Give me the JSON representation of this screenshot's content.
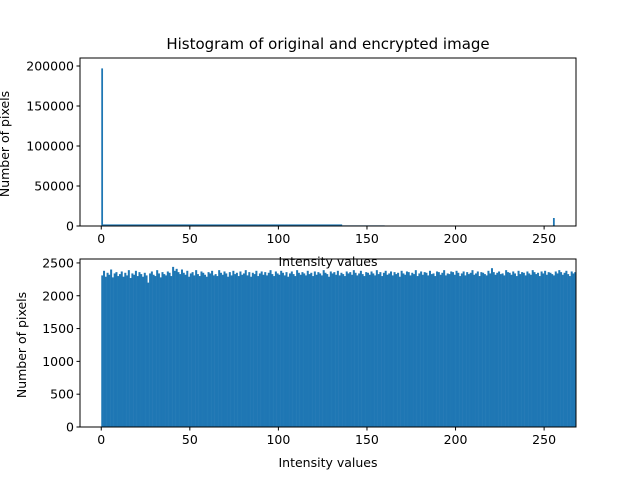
{
  "bar_color": "#1f77b4",
  "chart_data": [
    {
      "type": "bar",
      "title": "Histogram of original and encrypted image",
      "xlabel": "Intensity values",
      "ylabel": "Number of pixels",
      "xlim": [
        -12,
        268
      ],
      "ylim": [
        0,
        210000
      ],
      "xticks": [
        0,
        50,
        100,
        150,
        200,
        250
      ],
      "yticks": [
        0,
        50000,
        100000,
        150000,
        200000
      ],
      "bins": 256,
      "bin_range": [
        0,
        256
      ],
      "grid": false,
      "legend": "none",
      "series": [
        {
          "segments": [
            {
              "from": 0,
              "to": 1,
              "value": 197000
            },
            {
              "from": 1,
              "to": 136,
              "value": 2000
            },
            {
              "from": 136,
              "to": 160,
              "value": 800
            },
            {
              "from": 160,
              "to": 240,
              "value": 300
            },
            {
              "from": 240,
              "to": 255,
              "value": 600
            },
            {
              "from": 255,
              "to": 256,
              "value": 10000
            }
          ]
        }
      ]
    },
    {
      "type": "bar",
      "title": "",
      "xlabel": "Intensity values",
      "ylabel": "Number of pixels",
      "xlim": [
        -12,
        268
      ],
      "ylim": [
        0,
        2560
      ],
      "xticks": [
        0,
        50,
        100,
        150,
        200,
        250
      ],
      "yticks": [
        0,
        500,
        1000,
        1500,
        2000,
        2500
      ],
      "bins": 256,
      "bin_range": [
        0,
        256
      ],
      "grid": false,
      "legend": "none",
      "series": [
        {
          "typical_value": 2340,
          "min_value": 2200,
          "max_value": 2440,
          "values": [
            2310,
            2380,
            2290,
            2350,
            2320,
            2400,
            2280,
            2340,
            2360,
            2300,
            2330,
            2370,
            2290,
            2350,
            2310,
            2390,
            2270,
            2340,
            2320,
            2380,
            2300,
            2360,
            2330,
            2290,
            2350,
            2310,
            2200,
            2340,
            2370,
            2320,
            2300,
            2390,
            2340,
            2280,
            2360,
            2330,
            2310,
            2370,
            2350,
            2300,
            2440,
            2380,
            2410,
            2360,
            2330,
            2400,
            2350,
            2320,
            2380,
            2290,
            2340,
            2360,
            2310,
            2390,
            2330,
            2300,
            2370,
            2350,
            2320,
            2290,
            2360,
            2340,
            2380,
            2310,
            2330,
            2300,
            2390,
            2350,
            2320,
            2370,
            2340,
            2290,
            2360,
            2310,
            2380,
            2330,
            2350,
            2300,
            2370,
            2320,
            2340,
            2390,
            2310,
            2360,
            2290,
            2350,
            2330,
            2380,
            2300,
            2340,
            2370,
            2320,
            2360,
            2310,
            2350,
            2390,
            2330,
            2300,
            2370,
            2340,
            2320,
            2380,
            2350,
            2310,
            2360,
            2290,
            2340,
            2370,
            2330,
            2300,
            2390,
            2350,
            2320,
            2360,
            2340,
            2310,
            2380,
            2330,
            2350,
            2300,
            2370,
            2320,
            2360,
            2340,
            2310,
            2390,
            2350,
            2330,
            2290,
            2370,
            2340,
            2360,
            2320,
            2380,
            2310,
            2350,
            2330,
            2300,
            2370,
            2340,
            2360,
            2320,
            2390,
            2350,
            2310,
            2340,
            2380,
            2330,
            2300,
            2360,
            2350,
            2320,
            2370,
            2340,
            2310,
            2390,
            2330,
            2360,
            2300,
            2350,
            2380,
            2320,
            2340,
            2370,
            2310,
            2360,
            2330,
            2350,
            2290,
            2380,
            2340,
            2320,
            2370,
            2360,
            2310,
            2350,
            2330,
            2390,
            2300,
            2340,
            2370,
            2320,
            2360,
            2350,
            2310,
            2380,
            2330,
            2340,
            2300,
            2370,
            2360,
            2320,
            2350,
            2390,
            2310,
            2340,
            2330,
            2370,
            2360,
            2320,
            2380,
            2350,
            2300,
            2340,
            2370,
            2310,
            2360,
            2330,
            2350,
            2390,
            2320,
            2340,
            2370,
            2300,
            2360,
            2350,
            2330,
            2310,
            2380,
            2340,
            2420,
            2360,
            2320,
            2350,
            2370,
            2330,
            2340,
            2310,
            2390,
            2360,
            2350,
            2320,
            2370,
            2340,
            2300,
            2380,
            2330,
            2360,
            2350,
            2310,
            2370,
            2340,
            2320,
            2390,
            2360,
            2330,
            2350,
            2300,
            2370,
            2340,
            2380,
            2320,
            2360,
            2350,
            2330,
            2310,
            2370,
            2340,
            2390,
            2360,
            2320,
            2350,
            2380,
            2330,
            2300,
            2370,
            2340,
            2360
          ]
        }
      ]
    }
  ]
}
